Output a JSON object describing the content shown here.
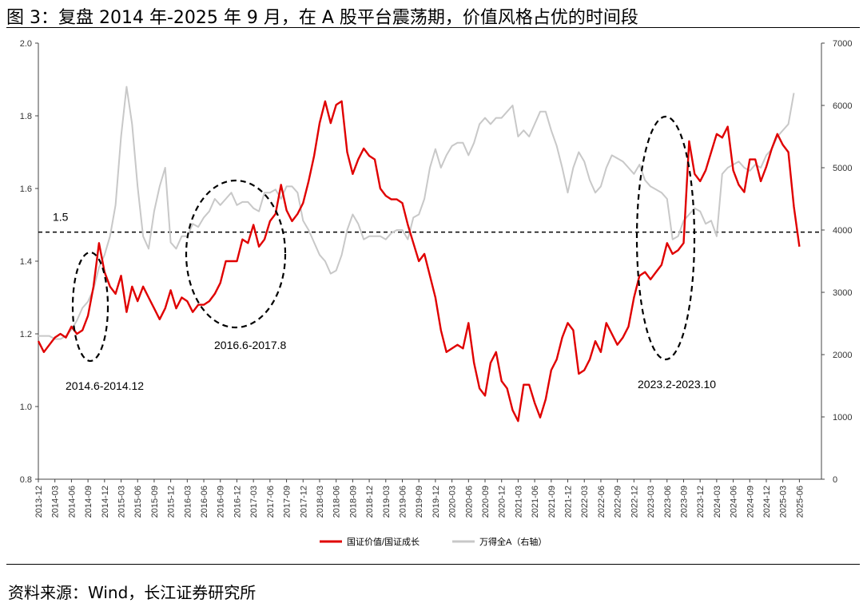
{
  "title": "图 3：复盘 2014 年-2025 年 9 月，在 A 股平台震荡期，价值风格占优的时间段",
  "source": "资料来源：Wind，长江证券研究所",
  "chart_data": {
    "type": "line",
    "left_axis": {
      "min": 0.8,
      "max": 2.0,
      "ticks": [
        "0.8",
        "1.0",
        "1.2",
        "1.4",
        "1.6",
        "1.8",
        "2.0"
      ]
    },
    "right_axis": {
      "min": 0,
      "max": 7000,
      "ticks": [
        "0",
        "1000",
        "2000",
        "3000",
        "4000",
        "5000",
        "6000",
        "7000"
      ]
    },
    "x_start": "2013-12",
    "x_months": 142,
    "x_labels": [
      "2013-12",
      "2014-03",
      "2014-06",
      "2014-09",
      "2014-12",
      "2015-03",
      "2015-06",
      "2015-09",
      "2015-12",
      "2016-03",
      "2016-06",
      "2016-09",
      "2016-12",
      "2017-03",
      "2017-06",
      "2017-09",
      "2017-12",
      "2018-03",
      "2018-06",
      "2018-09",
      "2018-12",
      "2019-03",
      "2019-06",
      "2019-09",
      "2019-12",
      "2020-03",
      "2020-06",
      "2020-09",
      "2020-12",
      "2021-03",
      "2021-06",
      "2021-09",
      "2021-12",
      "2022-03",
      "2022-06",
      "2022-09",
      "2022-12",
      "2023-03",
      "2023-06",
      "2023-09",
      "2023-12",
      "2024-03",
      "2024-06",
      "2024-09",
      "2024-12",
      "2025-03",
      "2025-06"
    ],
    "reference_line": {
      "value": 1.48,
      "label": "1.5"
    },
    "series": [
      {
        "name": "国证价值/国证成长",
        "axis": "left",
        "color": "#e00000",
        "points": [
          [
            0,
            1.18
          ],
          [
            1,
            1.15
          ],
          [
            2,
            1.17
          ],
          [
            3,
            1.19
          ],
          [
            4,
            1.2
          ],
          [
            5,
            1.19
          ],
          [
            6,
            1.22
          ],
          [
            7,
            1.2
          ],
          [
            8,
            1.21
          ],
          [
            9,
            1.25
          ],
          [
            10,
            1.33
          ],
          [
            11,
            1.45
          ],
          [
            12,
            1.37
          ],
          [
            13,
            1.33
          ],
          [
            14,
            1.31
          ],
          [
            15,
            1.36
          ],
          [
            16,
            1.26
          ],
          [
            17,
            1.33
          ],
          [
            18,
            1.29
          ],
          [
            19,
            1.33
          ],
          [
            20,
            1.3
          ],
          [
            21,
            1.27
          ],
          [
            22,
            1.24
          ],
          [
            23,
            1.27
          ],
          [
            24,
            1.32
          ],
          [
            25,
            1.27
          ],
          [
            26,
            1.3
          ],
          [
            27,
            1.29
          ],
          [
            28,
            1.26
          ],
          [
            29,
            1.28
          ],
          [
            30,
            1.28
          ],
          [
            31,
            1.29
          ],
          [
            32,
            1.31
          ],
          [
            33,
            1.34
          ],
          [
            34,
            1.4
          ],
          [
            35,
            1.4
          ],
          [
            36,
            1.4
          ],
          [
            37,
            1.46
          ],
          [
            38,
            1.45
          ],
          [
            39,
            1.5
          ],
          [
            40,
            1.44
          ],
          [
            41,
            1.46
          ],
          [
            42,
            1.51
          ],
          [
            43,
            1.53
          ],
          [
            44,
            1.61
          ],
          [
            45,
            1.54
          ],
          [
            46,
            1.51
          ],
          [
            47,
            1.53
          ],
          [
            48,
            1.56
          ],
          [
            49,
            1.62
          ],
          [
            50,
            1.69
          ],
          [
            51,
            1.78
          ],
          [
            52,
            1.84
          ],
          [
            53,
            1.78
          ],
          [
            54,
            1.83
          ],
          [
            55,
            1.84
          ],
          [
            56,
            1.7
          ],
          [
            57,
            1.64
          ],
          [
            58,
            1.68
          ],
          [
            59,
            1.71
          ],
          [
            60,
            1.69
          ],
          [
            61,
            1.68
          ],
          [
            62,
            1.6
          ],
          [
            63,
            1.58
          ],
          [
            64,
            1.57
          ],
          [
            65,
            1.57
          ],
          [
            66,
            1.56
          ],
          [
            67,
            1.5
          ],
          [
            68,
            1.45
          ],
          [
            69,
            1.4
          ],
          [
            70,
            1.42
          ],
          [
            71,
            1.36
          ],
          [
            72,
            1.3
          ],
          [
            73,
            1.21
          ],
          [
            74,
            1.15
          ],
          [
            75,
            1.16
          ],
          [
            76,
            1.17
          ],
          [
            77,
            1.16
          ],
          [
            78,
            1.23
          ],
          [
            79,
            1.12
          ],
          [
            80,
            1.05
          ],
          [
            81,
            1.03
          ],
          [
            82,
            1.12
          ],
          [
            83,
            1.15
          ],
          [
            84,
            1.07
          ],
          [
            85,
            1.05
          ],
          [
            86,
            0.99
          ],
          [
            87,
            0.96
          ],
          [
            88,
            1.06
          ],
          [
            89,
            1.06
          ],
          [
            90,
            1.01
          ],
          [
            91,
            0.97
          ],
          [
            92,
            1.02
          ],
          [
            93,
            1.1
          ],
          [
            94,
            1.13
          ],
          [
            95,
            1.19
          ],
          [
            96,
            1.23
          ],
          [
            97,
            1.21
          ],
          [
            98,
            1.09
          ],
          [
            99,
            1.1
          ],
          [
            100,
            1.13
          ],
          [
            101,
            1.18
          ],
          [
            102,
            1.15
          ],
          [
            103,
            1.23
          ],
          [
            104,
            1.2
          ],
          [
            105,
            1.17
          ],
          [
            106,
            1.19
          ],
          [
            107,
            1.22
          ],
          [
            108,
            1.3
          ],
          [
            109,
            1.36
          ],
          [
            110,
            1.37
          ],
          [
            111,
            1.35
          ],
          [
            112,
            1.37
          ],
          [
            113,
            1.39
          ],
          [
            114,
            1.45
          ],
          [
            115,
            1.42
          ],
          [
            116,
            1.43
          ],
          [
            117,
            1.45
          ],
          [
            118,
            1.73
          ],
          [
            119,
            1.64
          ],
          [
            120,
            1.62
          ],
          [
            121,
            1.65
          ],
          [
            122,
            1.7
          ],
          [
            123,
            1.75
          ],
          [
            124,
            1.74
          ],
          [
            125,
            1.77
          ],
          [
            126,
            1.65
          ],
          [
            127,
            1.61
          ],
          [
            128,
            1.59
          ],
          [
            129,
            1.68
          ],
          [
            130,
            1.68
          ],
          [
            131,
            1.62
          ],
          [
            132,
            1.66
          ],
          [
            133,
            1.71
          ],
          [
            134,
            1.75
          ],
          [
            135,
            1.72
          ],
          [
            136,
            1.7
          ],
          [
            137,
            1.55
          ],
          [
            138,
            1.44
          ]
        ]
      },
      {
        "name": "万得全A（右轴）",
        "axis": "right",
        "color": "#c8c8c8",
        "points": [
          [
            0,
            2300
          ],
          [
            1,
            2300
          ],
          [
            2,
            2300
          ],
          [
            3,
            2250
          ],
          [
            4,
            2250
          ],
          [
            5,
            2300
          ],
          [
            6,
            2400
          ],
          [
            7,
            2550
          ],
          [
            8,
            2750
          ],
          [
            9,
            2850
          ],
          [
            10,
            3050
          ],
          [
            11,
            3400
          ],
          [
            12,
            3600
          ],
          [
            13,
            3900
          ],
          [
            14,
            4400
          ],
          [
            15,
            5500
          ],
          [
            16,
            6300
          ],
          [
            17,
            5700
          ],
          [
            18,
            4700
          ],
          [
            19,
            3900
          ],
          [
            20,
            3700
          ],
          [
            21,
            4300
          ],
          [
            22,
            4700
          ],
          [
            23,
            5000
          ],
          [
            24,
            3800
          ],
          [
            25,
            3700
          ],
          [
            26,
            3900
          ],
          [
            27,
            3900
          ],
          [
            28,
            4100
          ],
          [
            29,
            4050
          ],
          [
            30,
            4200
          ],
          [
            31,
            4300
          ],
          [
            32,
            4500
          ],
          [
            33,
            4400
          ],
          [
            34,
            4500
          ],
          [
            35,
            4600
          ],
          [
            36,
            4400
          ],
          [
            37,
            4450
          ],
          [
            38,
            4450
          ],
          [
            39,
            4350
          ],
          [
            40,
            4300
          ],
          [
            41,
            4600
          ],
          [
            42,
            4600
          ],
          [
            43,
            4650
          ],
          [
            44,
            4500
          ],
          [
            45,
            4700
          ],
          [
            46,
            4700
          ],
          [
            47,
            4600
          ],
          [
            48,
            4150
          ],
          [
            49,
            4000
          ],
          [
            50,
            3800
          ],
          [
            51,
            3600
          ],
          [
            52,
            3500
          ],
          [
            53,
            3300
          ],
          [
            54,
            3350
          ],
          [
            55,
            3600
          ],
          [
            56,
            4000
          ],
          [
            57,
            4250
          ],
          [
            58,
            4100
          ],
          [
            59,
            3850
          ],
          [
            60,
            3900
          ],
          [
            61,
            3900
          ],
          [
            62,
            3900
          ],
          [
            63,
            3850
          ],
          [
            64,
            3950
          ],
          [
            65,
            4000
          ],
          [
            66,
            4000
          ],
          [
            67,
            3850
          ],
          [
            68,
            4200
          ],
          [
            69,
            4250
          ],
          [
            70,
            4500
          ],
          [
            71,
            5000
          ],
          [
            72,
            5300
          ],
          [
            73,
            5000
          ],
          [
            74,
            5200
          ],
          [
            75,
            5350
          ],
          [
            76,
            5400
          ],
          [
            77,
            5400
          ],
          [
            78,
            5200
          ],
          [
            79,
            5400
          ],
          [
            80,
            5700
          ],
          [
            81,
            5800
          ],
          [
            82,
            5700
          ],
          [
            83,
            5800
          ],
          [
            84,
            5800
          ],
          [
            85,
            5900
          ],
          [
            86,
            6000
          ],
          [
            87,
            5500
          ],
          [
            88,
            5600
          ],
          [
            89,
            5500
          ],
          [
            90,
            5700
          ],
          [
            91,
            5900
          ],
          [
            92,
            5900
          ],
          [
            93,
            5600
          ],
          [
            94,
            5350
          ],
          [
            95,
            5000
          ],
          [
            96,
            4600
          ],
          [
            97,
            5000
          ],
          [
            98,
            5250
          ],
          [
            99,
            5100
          ],
          [
            100,
            4800
          ],
          [
            101,
            4600
          ],
          [
            102,
            4700
          ],
          [
            103,
            5000
          ],
          [
            104,
            5200
          ],
          [
            105,
            5150
          ],
          [
            106,
            5100
          ],
          [
            107,
            5000
          ],
          [
            108,
            4900
          ],
          [
            109,
            5050
          ],
          [
            110,
            4800
          ],
          [
            111,
            4700
          ],
          [
            112,
            4650
          ],
          [
            113,
            4600
          ],
          [
            114,
            4500
          ],
          [
            115,
            3850
          ],
          [
            116,
            3900
          ],
          [
            117,
            4150
          ],
          [
            118,
            4250
          ],
          [
            119,
            4350
          ],
          [
            120,
            4300
          ],
          [
            121,
            4100
          ],
          [
            122,
            4150
          ],
          [
            123,
            3900
          ],
          [
            124,
            4900
          ],
          [
            125,
            5000
          ],
          [
            126,
            5050
          ],
          [
            127,
            5100
          ],
          [
            128,
            5000
          ],
          [
            129,
            4950
          ],
          [
            130,
            5050
          ],
          [
            131,
            5000
          ],
          [
            132,
            5200
          ],
          [
            133,
            5300
          ],
          [
            134,
            5500
          ],
          [
            135,
            5600
          ],
          [
            136,
            5700
          ],
          [
            137,
            6200
          ]
        ]
      }
    ],
    "annotations": [
      {
        "label": "2014.6-2014.12",
        "period": "2014.6-2014.12"
      },
      {
        "label": "2016.6-2017.8",
        "period": "2016.6-2017.8"
      },
      {
        "label": "2023.2-2023.10",
        "period": "2023.2-2023.10"
      }
    ],
    "legend": [
      {
        "label": "国证价值/国证成长",
        "color": "#e00000"
      },
      {
        "label": "万得全A（右轴）",
        "color": "#c8c8c8"
      }
    ]
  }
}
